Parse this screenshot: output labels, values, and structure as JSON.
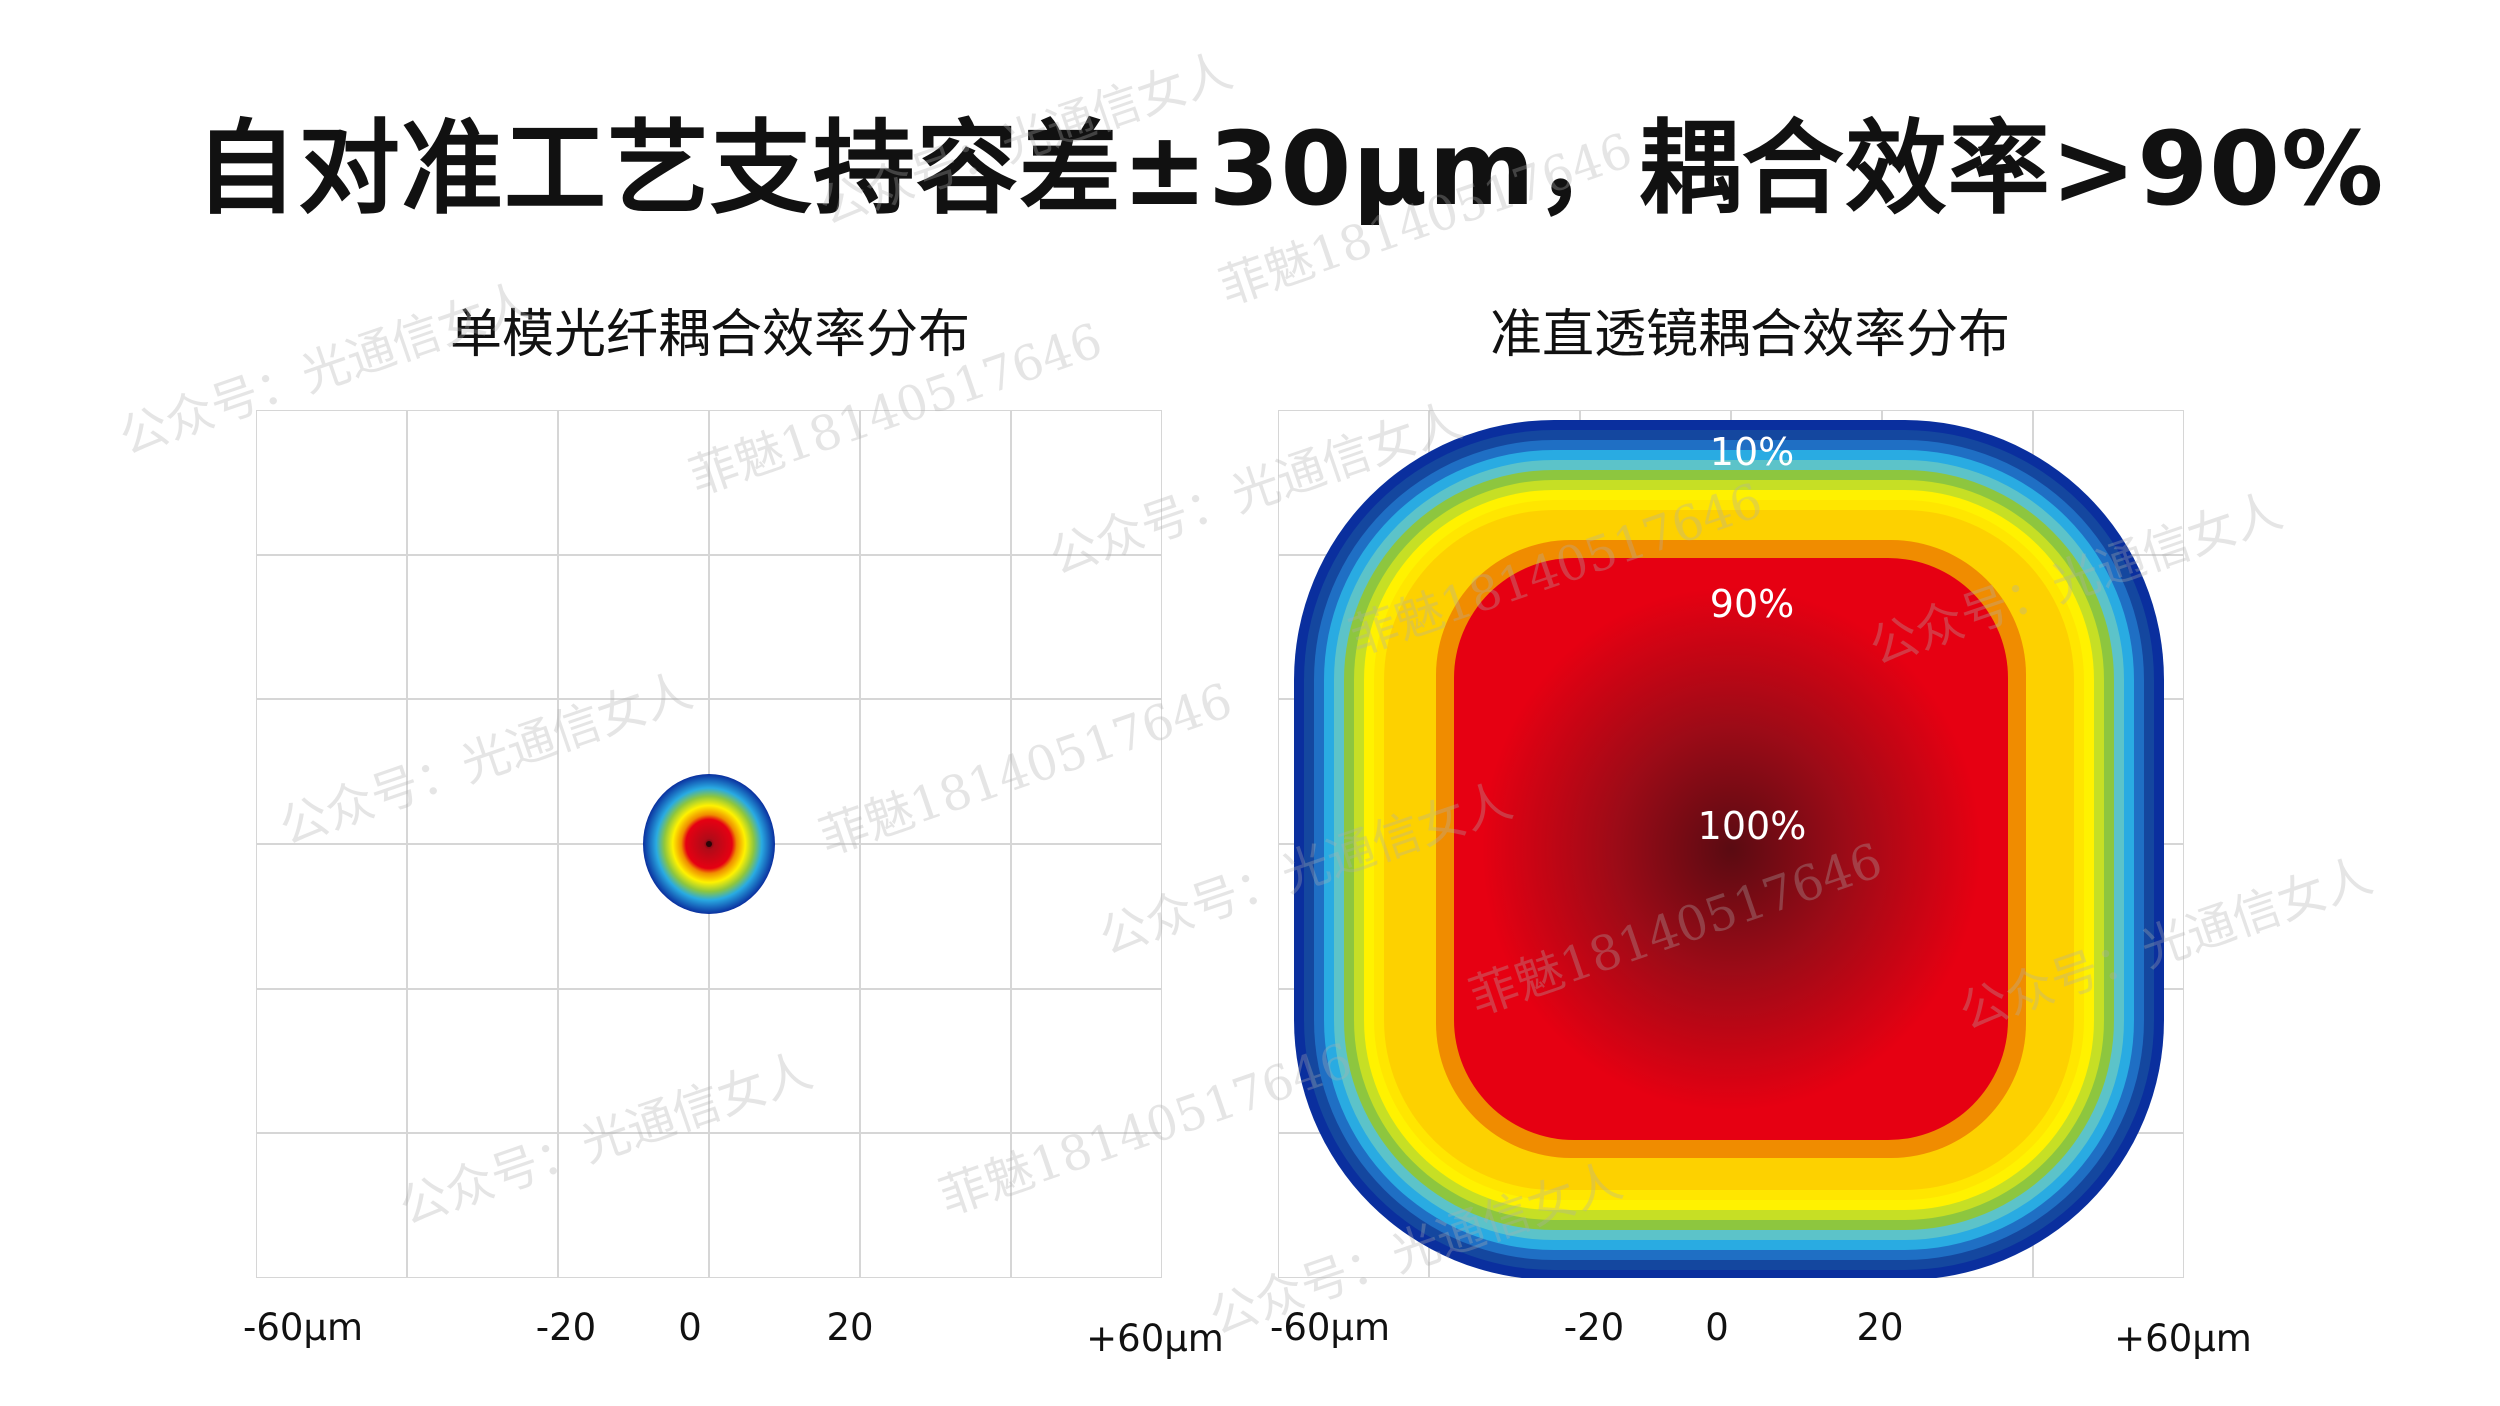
{
  "title": "自对准工艺支持容差±30μm，耦合效率>90%",
  "left_panel": {
    "title": "单模光纤耦合效率分布",
    "x_ticks": [
      "-60μm",
      "-20",
      "0",
      "20",
      "+60μm"
    ]
  },
  "right_panel": {
    "title": "准直透镜耦合效率分布",
    "x_ticks": [
      "-60μm",
      "-20",
      "0",
      "20",
      "+60μm"
    ],
    "contour_labels": [
      "10%",
      "90%",
      "100%"
    ]
  },
  "colors": {
    "deep_red": "#5a0b12",
    "red": "#e60012",
    "orange": "#f08c00",
    "yellow": "#fff200",
    "green": "#8dc63f",
    "cyan": "#29abe2",
    "blue": "#0a2f9e",
    "grid": "#d6d6d6"
  },
  "watermarks": [
    "公众号：光通信女人",
    "菲魅18140517646"
  ]
}
